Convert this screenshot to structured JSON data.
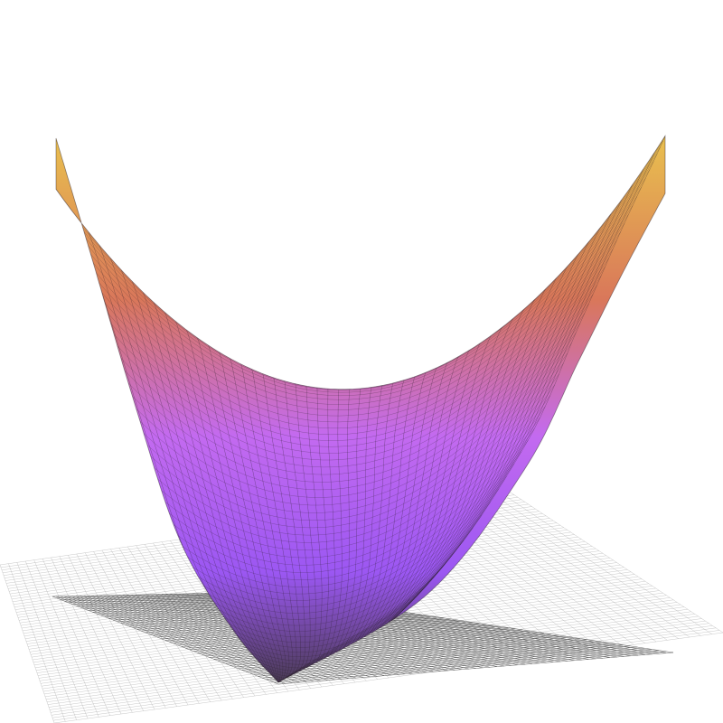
{
  "scene": {
    "colors": {
      "background": "#ffffff",
      "surface_top": "#e9c04e",
      "surface_upper": "#d9775a",
      "surface_mid": "#c36af0",
      "surface_lower": "#9b57f2",
      "surface_bottom": "#4a3b55",
      "floor_grid": "#9a9a9a",
      "shadow_grid": "#333333",
      "mesh_line": "#2a1f2a"
    },
    "surface": {
      "kind": "paraboloid",
      "grid_u": 56,
      "grid_v": 56
    }
  }
}
